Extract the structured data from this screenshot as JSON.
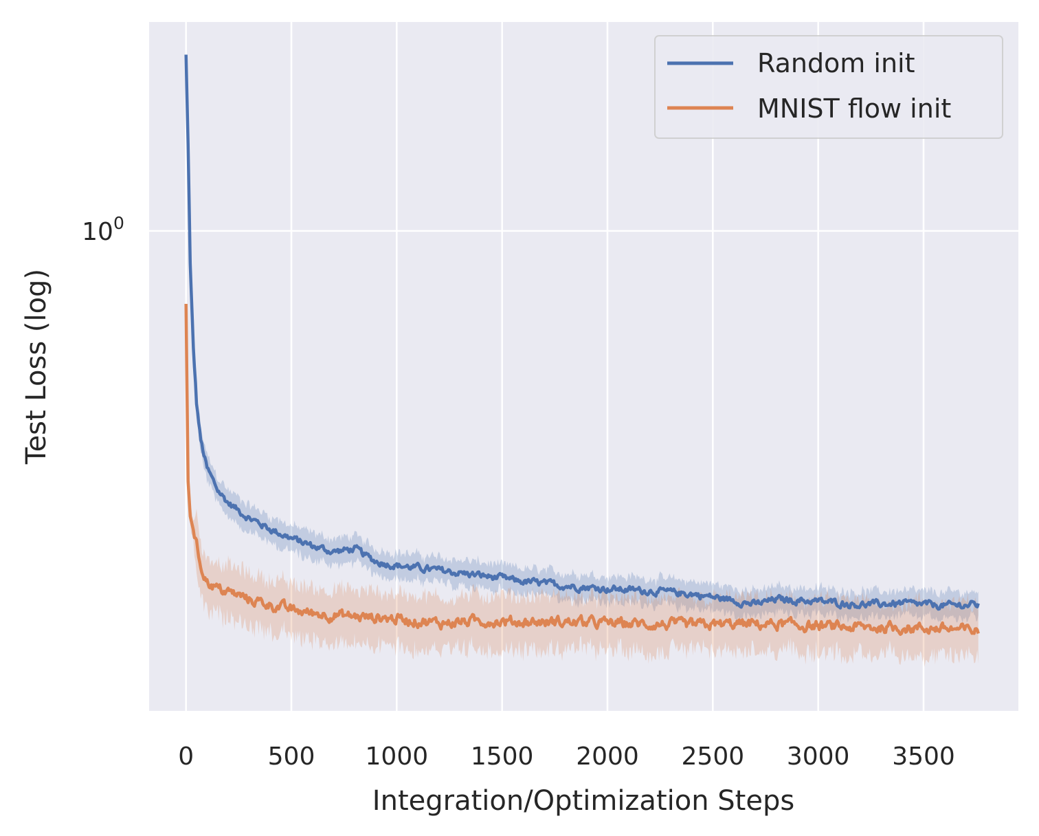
{
  "chart_data": {
    "type": "line",
    "title": "",
    "xlabel": "Integration/Optimization Steps",
    "ylabel": "Test Loss (log)",
    "yscale": "log",
    "xlim": [
      -175,
      3950
    ],
    "ylim": [
      0.4,
      1.49
    ],
    "xticks": [
      0,
      500,
      1000,
      1500,
      2000,
      2500,
      3000,
      3500
    ],
    "xtick_labels": [
      "0",
      "500",
      "1000",
      "1500",
      "2000",
      "2500",
      "3000",
      "3500"
    ],
    "yticks": [
      {
        "value": 1.0,
        "base": "10",
        "exponent": "0"
      }
    ],
    "grid": true,
    "legend_position": "top-right",
    "background": "#eaeaf2",
    "series": [
      {
        "name": "Random init",
        "color": "#4c72b0",
        "band": "±band",
        "points": [
          [
            0,
            1.4
          ],
          [
            10,
            1.18
          ],
          [
            20,
            0.94
          ],
          [
            35,
            0.8
          ],
          [
            50,
            0.72
          ],
          [
            70,
            0.67
          ],
          [
            100,
            0.635
          ],
          [
            150,
            0.61
          ],
          [
            200,
            0.595
          ],
          [
            300,
            0.578
          ],
          [
            400,
            0.566
          ],
          [
            500,
            0.556
          ],
          [
            600,
            0.548
          ],
          [
            700,
            0.542
          ],
          [
            800,
            0.545
          ],
          [
            900,
            0.532
          ],
          [
            1000,
            0.528
          ],
          [
            1200,
            0.523
          ],
          [
            1400,
            0.518
          ],
          [
            1600,
            0.512
          ],
          [
            1800,
            0.508
          ],
          [
            2000,
            0.505
          ],
          [
            2200,
            0.503
          ],
          [
            2400,
            0.5
          ],
          [
            2600,
            0.494
          ],
          [
            2700,
            0.49
          ],
          [
            2800,
            0.495
          ],
          [
            3000,
            0.493
          ],
          [
            3200,
            0.49
          ],
          [
            3400,
            0.491
          ],
          [
            3600,
            0.489
          ],
          [
            3760,
            0.49
          ]
        ]
      },
      {
        "name": "MNIST flow init",
        "color": "#dd8452",
        "points": [
          [
            0,
            0.87
          ],
          [
            10,
            0.62
          ],
          [
            20,
            0.58
          ],
          [
            40,
            0.56
          ],
          [
            70,
            0.528
          ],
          [
            100,
            0.512
          ],
          [
            150,
            0.505
          ],
          [
            200,
            0.502
          ],
          [
            300,
            0.495
          ],
          [
            400,
            0.49
          ],
          [
            500,
            0.485
          ],
          [
            600,
            0.482
          ],
          [
            800,
            0.479
          ],
          [
            1000,
            0.477
          ],
          [
            1200,
            0.473
          ],
          [
            1400,
            0.475
          ],
          [
            1600,
            0.474
          ],
          [
            1800,
            0.474
          ],
          [
            2000,
            0.473
          ],
          [
            2200,
            0.472
          ],
          [
            2400,
            0.471
          ],
          [
            2600,
            0.472
          ],
          [
            2800,
            0.472
          ],
          [
            3000,
            0.47
          ],
          [
            3200,
            0.469
          ],
          [
            3400,
            0.469
          ],
          [
            3600,
            0.468
          ],
          [
            3760,
            0.466
          ]
        ]
      }
    ]
  }
}
